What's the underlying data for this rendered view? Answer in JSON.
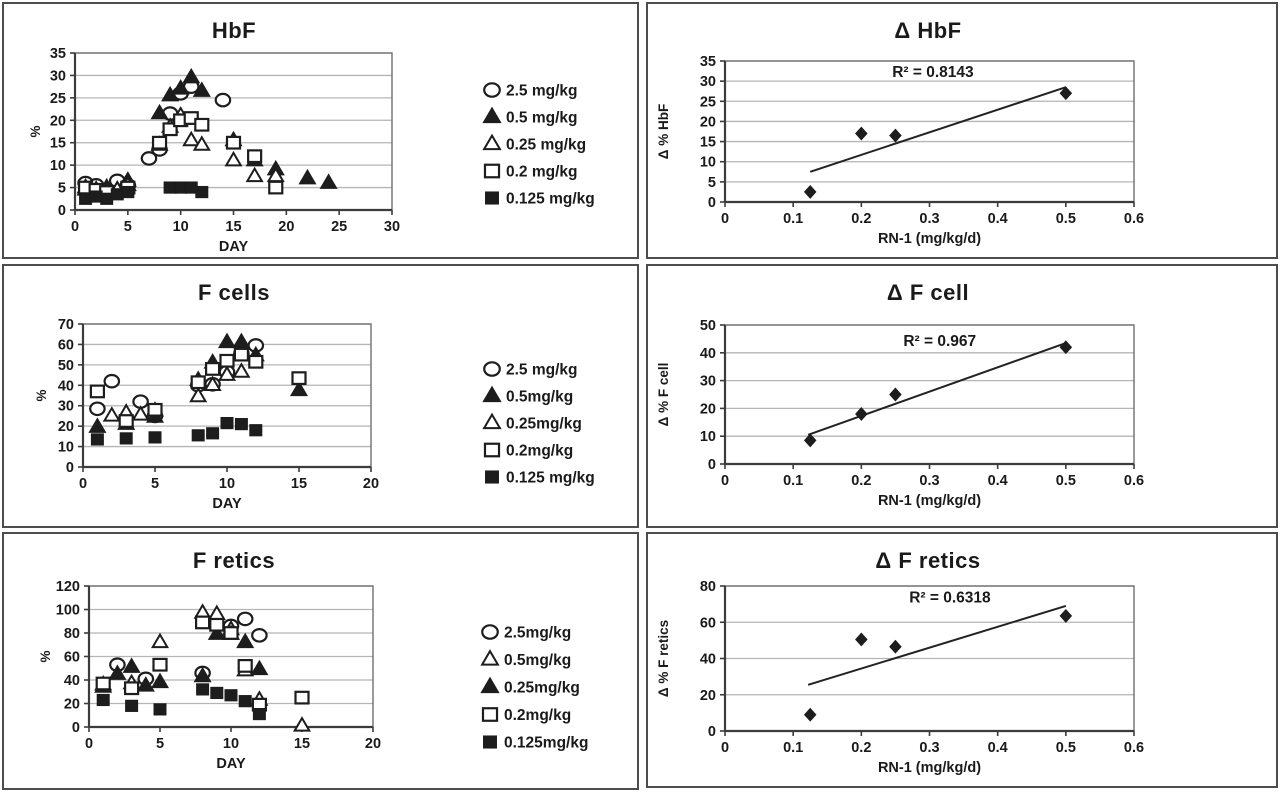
{
  "figure": {
    "background": "#ffffff",
    "panel_border_color": "#4d4d4d",
    "marker_color": "#1d1d1d",
    "gridline_color": "#b5b5b5",
    "axis_color": "#3c3c3c",
    "text_color": "#1a1a1a"
  },
  "chart_data": [
    {
      "id": "hbf",
      "type": "scatter",
      "title": "HbF",
      "xlabel": "DAY",
      "ylabel": "%",
      "xlim": [
        0,
        30
      ],
      "xticks": [
        0,
        5,
        10,
        15,
        20,
        25,
        30
      ],
      "ylim": [
        0,
        35
      ],
      "yticks": [
        0,
        5,
        10,
        15,
        20,
        25,
        30,
        35
      ],
      "grid": "horizontal",
      "legend_position": "right",
      "series": [
        {
          "name": "2.5 mg/kg",
          "marker": "circle-open",
          "points": [
            [
              1,
              6
            ],
            [
              2,
              5.5
            ],
            [
              3,
              4.5
            ],
            [
              4,
              6.5
            ],
            [
              5,
              5.5
            ],
            [
              7,
              11.5
            ],
            [
              8,
              13.5
            ],
            [
              9,
              21.5
            ],
            [
              10,
              26
            ],
            [
              11,
              27.5
            ],
            [
              14,
              24.5
            ]
          ]
        },
        {
          "name": "0.5 mg/kg",
          "marker": "triangle-filled",
          "points": [
            [
              1,
              5
            ],
            [
              2,
              4.5
            ],
            [
              3,
              5
            ],
            [
              4,
              4.5
            ],
            [
              5,
              6.5
            ],
            [
              8,
              21.5
            ],
            [
              9,
              25.5
            ],
            [
              10,
              27
            ],
            [
              11,
              29.5
            ],
            [
              12,
              26.5
            ],
            [
              15,
              15.5
            ],
            [
              17,
              11
            ],
            [
              19,
              9
            ],
            [
              22,
              7
            ],
            [
              24,
              6
            ]
          ]
        },
        {
          "name": "0.25 mg/kg",
          "marker": "triangle-open",
          "points": [
            [
              1,
              4.5
            ],
            [
              2,
              4
            ],
            [
              3,
              4
            ],
            [
              4,
              4.5
            ],
            [
              5,
              5.5
            ],
            [
              8,
              14.5
            ],
            [
              9,
              18.5
            ],
            [
              10,
              21
            ],
            [
              11,
              15.5
            ],
            [
              12,
              14.5
            ],
            [
              15,
              11
            ],
            [
              17,
              7.5
            ],
            [
              19,
              7.5
            ]
          ]
        },
        {
          "name": "0.2 mg/kg",
          "marker": "square-open",
          "points": [
            [
              1,
              5
            ],
            [
              2,
              4.5
            ],
            [
              3,
              4
            ],
            [
              5,
              5
            ],
            [
              8,
              15
            ],
            [
              9,
              18
            ],
            [
              10,
              20
            ],
            [
              11,
              20.5
            ],
            [
              12,
              19
            ],
            [
              15,
              15
            ],
            [
              17,
              12
            ],
            [
              19,
              5
            ]
          ]
        },
        {
          "name": "0.125 mg/kg",
          "marker": "square-filled",
          "points": [
            [
              1,
              2.5
            ],
            [
              2,
              3
            ],
            [
              3,
              2.5
            ],
            [
              4,
              3.5
            ],
            [
              5,
              4
            ],
            [
              9,
              5
            ],
            [
              10,
              5
            ],
            [
              11,
              5
            ],
            [
              12,
              4
            ]
          ]
        }
      ]
    },
    {
      "id": "delta-hbf",
      "type": "scatter",
      "title": "Δ HbF",
      "xlabel": "RN-1 (mg/kg/d)",
      "ylabel": "Δ % HbF",
      "xlim": [
        0,
        0.6
      ],
      "xticks": [
        0,
        0.1,
        0.2,
        0.3,
        0.4,
        0.5,
        0.6
      ],
      "ylim": [
        0,
        35
      ],
      "yticks": [
        0,
        5,
        10,
        15,
        20,
        25,
        30,
        35
      ],
      "grid": "horizontal",
      "series": [
        {
          "name": "Δ % HbF",
          "marker": "diamond-filled",
          "points": [
            [
              0.125,
              2.5
            ],
            [
              0.2,
              17
            ],
            [
              0.25,
              16.5
            ],
            [
              0.5,
              27
            ]
          ]
        }
      ],
      "trendline": {
        "x1": 0.125,
        "y1": 7.5,
        "x2": 0.5,
        "y2": 28.5
      },
      "annotation": {
        "text": "R² = 0.8143",
        "x": 0.305,
        "y": 31
      }
    },
    {
      "id": "f-cells",
      "type": "scatter",
      "title": "F cells",
      "xlabel": "DAY",
      "ylabel": "%",
      "xlim": [
        0,
        20
      ],
      "xticks": [
        0,
        5,
        10,
        15,
        20
      ],
      "ylim": [
        0,
        70
      ],
      "yticks": [
        0,
        10,
        20,
        30,
        40,
        50,
        60,
        70
      ],
      "grid": "horizontal",
      "legend_position": "right",
      "series": [
        {
          "name": "2.5 mg/kg",
          "marker": "circle-open",
          "points": [
            [
              1,
              28.5
            ],
            [
              2,
              42
            ],
            [
              4,
              32
            ],
            [
              5,
              25
            ],
            [
              8,
              40
            ],
            [
              9,
              40.5
            ],
            [
              10,
              46.5
            ],
            [
              11,
              55.5
            ],
            [
              12,
              59.5
            ]
          ]
        },
        {
          "name": "0.5mg/kg",
          "marker": "triangle-filled",
          "points": [
            [
              1,
              19.5
            ],
            [
              3,
              21
            ],
            [
              5,
              24.5
            ],
            [
              8,
              42.5
            ],
            [
              9,
              51
            ],
            [
              10,
              61
            ],
            [
              11,
              61
            ],
            [
              12,
              54.5
            ],
            [
              15,
              37.5
            ]
          ]
        },
        {
          "name": "0.25mg/kg",
          "marker": "triangle-open",
          "points": [
            [
              2,
              25
            ],
            [
              3,
              26.5
            ],
            [
              4,
              25.5
            ],
            [
              5,
              27.5
            ],
            [
              8,
              34.5
            ],
            [
              9,
              40
            ],
            [
              10,
              45
            ],
            [
              11,
              46.5
            ]
          ]
        },
        {
          "name": "0.2mg/kg",
          "marker": "square-open",
          "points": [
            [
              1,
              37
            ],
            [
              3,
              22.5
            ],
            [
              5,
              28
            ],
            [
              8,
              41.5
            ],
            [
              9,
              48
            ],
            [
              10,
              52
            ],
            [
              11,
              55
            ],
            [
              12,
              51.5
            ],
            [
              15,
              43.5
            ]
          ]
        },
        {
          "name": "0.125 mg/kg",
          "marker": "square-filled",
          "points": [
            [
              1,
              13.5
            ],
            [
              3,
              14
            ],
            [
              5,
              14.5
            ],
            [
              8,
              15.5
            ],
            [
              9,
              16.5
            ],
            [
              10,
              21.5
            ],
            [
              11,
              21
            ],
            [
              12,
              18
            ]
          ]
        }
      ]
    },
    {
      "id": "delta-f-cell",
      "type": "scatter",
      "title": "Δ F cell",
      "xlabel": "RN-1 (mg/kg/d)",
      "ylabel": "Δ % F cell",
      "xlim": [
        0,
        0.6
      ],
      "xticks": [
        0,
        0.1,
        0.2,
        0.3,
        0.4,
        0.5,
        0.6
      ],
      "ylim": [
        0,
        50
      ],
      "yticks": [
        0,
        10,
        20,
        30,
        40,
        50
      ],
      "grid": "horizontal",
      "series": [
        {
          "name": "Δ % F cell",
          "marker": "diamond-filled",
          "points": [
            [
              0.125,
              8.5
            ],
            [
              0.2,
              18
            ],
            [
              0.25,
              25
            ],
            [
              0.5,
              42
            ]
          ]
        }
      ],
      "trendline": {
        "x1": 0.122,
        "y1": 10.5,
        "x2": 0.5,
        "y2": 43.5
      },
      "annotation": {
        "text": "R² = 0.967",
        "x": 0.315,
        "y": 42.5
      }
    },
    {
      "id": "f-retics",
      "type": "scatter",
      "title": "F retics",
      "xlabel": "DAY",
      "ylabel": "%",
      "xlim": [
        0,
        20
      ],
      "xticks": [
        0,
        5,
        10,
        15,
        20
      ],
      "ylim": [
        0,
        120
      ],
      "yticks": [
        0,
        20,
        40,
        60,
        80,
        100,
        120
      ],
      "grid": "horizontal",
      "legend_position": "right",
      "series": [
        {
          "name": "2.5mg/kg",
          "marker": "circle-open",
          "points": [
            [
              2,
              53
            ],
            [
              4,
              41
            ],
            [
              8,
              46
            ],
            [
              9,
              87
            ],
            [
              10,
              86
            ],
            [
              11,
              92
            ],
            [
              12,
              78
            ]
          ]
        },
        {
          "name": "0.5mg/kg",
          "marker": "triangle-open",
          "points": [
            [
              1,
              36
            ],
            [
              3,
              37
            ],
            [
              5,
              72
            ],
            [
              8,
              97
            ],
            [
              9,
              96
            ],
            [
              10,
              83
            ],
            [
              11,
              48
            ],
            [
              12,
              23
            ],
            [
              15,
              1
            ]
          ]
        },
        {
          "name": "0.25mg/kg",
          "marker": "triangle-filled",
          "points": [
            [
              1,
              34
            ],
            [
              2,
              45
            ],
            [
              3,
              51
            ],
            [
              4,
              35
            ],
            [
              5,
              38
            ],
            [
              8,
              43
            ],
            [
              9,
              79
            ],
            [
              10,
              79
            ],
            [
              11,
              72
            ],
            [
              12,
              49
            ]
          ]
        },
        {
          "name": "0.2mg/kg",
          "marker": "square-open",
          "points": [
            [
              1,
              37
            ],
            [
              3,
              33
            ],
            [
              5,
              53
            ],
            [
              8,
              89
            ],
            [
              9,
              87
            ],
            [
              10,
              80
            ],
            [
              11,
              52
            ],
            [
              12,
              19
            ],
            [
              15,
              25
            ]
          ]
        },
        {
          "name": "0.125mg/kg",
          "marker": "square-filled",
          "points": [
            [
              1,
              23
            ],
            [
              3,
              18
            ],
            [
              5,
              15
            ],
            [
              8,
              32
            ],
            [
              9,
              29
            ],
            [
              10,
              27
            ],
            [
              11,
              22
            ],
            [
              12,
              11
            ]
          ]
        }
      ]
    },
    {
      "id": "delta-f-retics",
      "type": "scatter",
      "title": "Δ F retics",
      "xlabel": "RN-1 (mg/kg/d)",
      "ylabel": "Δ % F retics",
      "xlim": [
        0,
        0.6
      ],
      "xticks": [
        0,
        0.1,
        0.2,
        0.3,
        0.4,
        0.5,
        0.6
      ],
      "ylim": [
        0,
        80
      ],
      "yticks": [
        0,
        20,
        40,
        60,
        80
      ],
      "grid": "horizontal",
      "series": [
        {
          "name": "Δ % F retics",
          "marker": "diamond-filled",
          "points": [
            [
              0.125,
              9
            ],
            [
              0.2,
              50.5
            ],
            [
              0.25,
              46.5
            ],
            [
              0.5,
              63.5
            ]
          ]
        }
      ],
      "trendline": {
        "x1": 0.122,
        "y1": 25.5,
        "x2": 0.5,
        "y2": 69
      },
      "annotation": {
        "text": "R² = 0.6318",
        "x": 0.33,
        "y": 71
      }
    }
  ]
}
